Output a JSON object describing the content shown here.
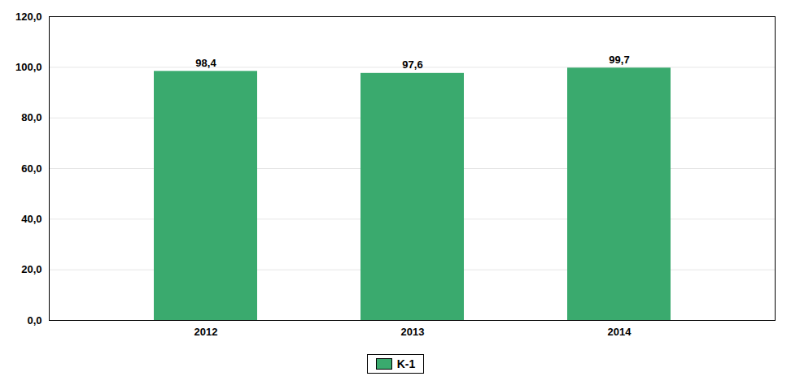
{
  "chart_data": {
    "type": "bar",
    "categories": [
      "2012",
      "2013",
      "2014"
    ],
    "series": [
      {
        "name": "K-1",
        "color": "#3aaa6e",
        "values": [
          98.4,
          97.6,
          99.7
        ],
        "value_labels": [
          "98,4",
          "97,6",
          "99,7"
        ]
      }
    ],
    "ylim": [
      0,
      120
    ],
    "yticks": [
      {
        "value": 0,
        "label": "0,0"
      },
      {
        "value": 20,
        "label": "20,0"
      },
      {
        "value": 40,
        "label": "40,0"
      },
      {
        "value": 60,
        "label": "60,0"
      },
      {
        "value": 80,
        "label": "80,0"
      },
      {
        "value": 100,
        "label": "100,0"
      },
      {
        "value": 120,
        "label": "120,0"
      }
    ],
    "grid": true,
    "data_labels": true,
    "legend": "bottom"
  }
}
